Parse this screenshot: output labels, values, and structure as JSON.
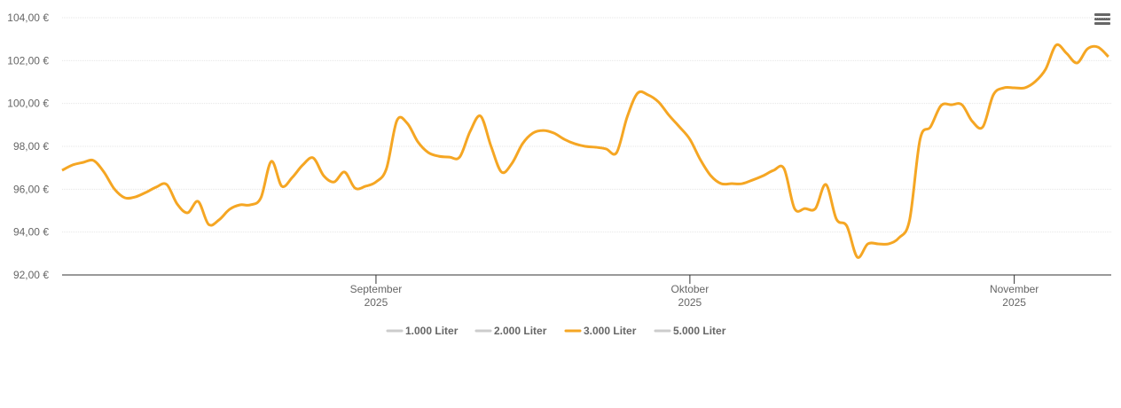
{
  "chart_data": {
    "type": "line",
    "categories": [
      null,
      null,
      null,
      null,
      null,
      null,
      null,
      null,
      null,
      null,
      null,
      null,
      null,
      null,
      null,
      null,
      null,
      null,
      null,
      null,
      null,
      null,
      null,
      null,
      null,
      null,
      null,
      null,
      null,
      null,
      "September 2025",
      null,
      null,
      null,
      null,
      null,
      null,
      null,
      null,
      null,
      null,
      null,
      null,
      null,
      null,
      null,
      null,
      null,
      null,
      null,
      null,
      null,
      null,
      null,
      null,
      null,
      null,
      null,
      null,
      null,
      "Oktober 2025",
      null,
      null,
      null,
      null,
      null,
      null,
      null,
      null,
      null,
      null,
      null,
      null,
      null,
      null,
      null,
      null,
      null,
      null,
      null,
      null,
      null,
      null,
      null,
      null,
      null,
      null,
      null,
      null,
      null,
      null,
      "November 2025",
      null,
      null,
      null,
      null,
      null,
      null,
      null,
      null,
      null
    ],
    "series": [
      {
        "name": "1.000 Liter",
        "color": "#cccccc",
        "visible": false
      },
      {
        "name": "2.000 Liter",
        "color": "#cccccc",
        "visible": false
      },
      {
        "name": "3.000 Liter",
        "color": "#f5a623",
        "visible": true,
        "values": [
          96.88,
          97.13,
          97.25,
          97.34,
          96.8,
          96.01,
          95.6,
          95.64,
          95.85,
          96.1,
          96.22,
          95.31,
          94.9,
          95.43,
          94.36,
          94.57,
          95.06,
          95.27,
          95.27,
          95.6,
          97.3,
          96.14,
          96.55,
          97.13,
          97.46,
          96.63,
          96.34,
          96.8,
          96.05,
          96.14,
          96.34,
          96.96,
          99.2,
          99.07,
          98.21,
          97.71,
          97.54,
          97.5,
          97.5,
          98.7,
          99.41,
          98.0,
          96.8,
          97.21,
          98.12,
          98.62,
          98.74,
          98.62,
          98.33,
          98.12,
          98.0,
          97.96,
          97.88,
          97.71,
          99.36,
          100.48,
          100.4,
          100.07,
          99.45,
          98.91,
          98.33,
          97.38,
          96.63,
          96.26,
          96.26,
          96.26,
          96.43,
          96.63,
          96.88,
          96.96,
          95.1,
          95.1,
          95.1,
          96.22,
          94.61,
          94.28,
          92.83,
          93.45,
          93.45,
          93.45,
          93.74,
          94.57,
          98.33,
          98.91,
          99.9,
          99.94,
          99.94,
          99.16,
          98.91,
          100.4,
          100.73,
          100.73,
          100.73,
          101.02,
          101.6,
          102.72,
          102.34,
          101.89,
          102.55,
          102.63,
          102.18
        ]
      },
      {
        "name": "5.000 Liter",
        "color": "#cccccc",
        "visible": false
      }
    ],
    "ylim": [
      92,
      104
    ],
    "yticks": [
      {
        "value": 92,
        "label": "92,00 €"
      },
      {
        "value": 94,
        "label": "94,00 €"
      },
      {
        "value": 96,
        "label": "96,00 €"
      },
      {
        "value": 98,
        "label": "98,00 €"
      },
      {
        "value": 100,
        "label": "100,00 €"
      },
      {
        "value": 102,
        "label": "102,00 €"
      },
      {
        "value": 104,
        "label": "104,00 €"
      }
    ],
    "grid": true,
    "legend": "bottom"
  }
}
